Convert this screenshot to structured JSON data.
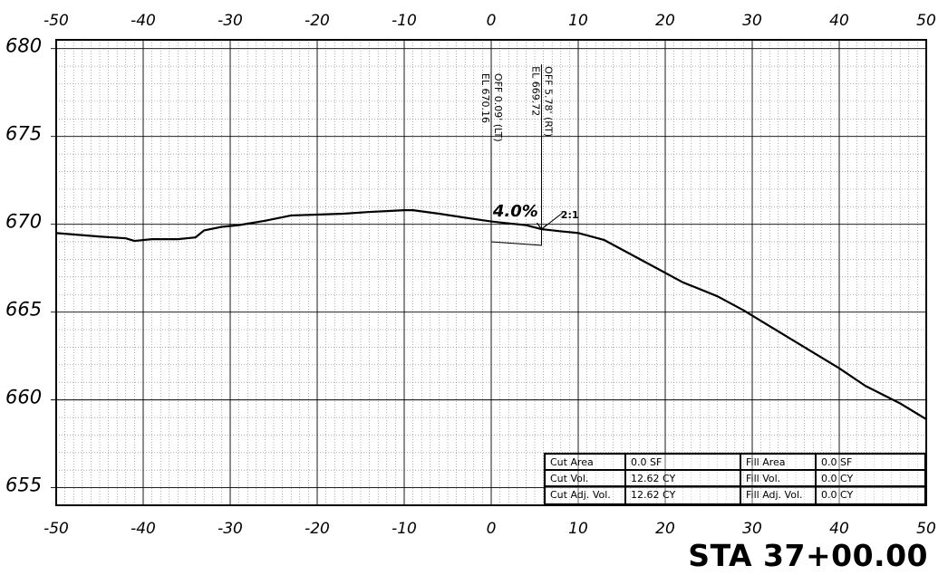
{
  "chart_data": {
    "type": "line",
    "x_ticks": [
      -50,
      -40,
      -30,
      -20,
      -10,
      0,
      10,
      20,
      30,
      40,
      50
    ],
    "y_ticks": [
      680,
      675,
      670,
      665,
      660,
      655
    ],
    "xlim": [
      -50,
      50
    ],
    "ylim": [
      654,
      680.5
    ],
    "grid": true,
    "minor_grid": "dotted",
    "series": [
      {
        "x": [
          -50,
          -45,
          -42,
          -41,
          -39,
          -36,
          -34,
          -33,
          -31,
          -29,
          -26,
          -23,
          -20,
          -17,
          -14,
          -12,
          -10,
          -9,
          -6,
          -2,
          0,
          2,
          4,
          5.78,
          8,
          10,
          13,
          16,
          19,
          22,
          26,
          29,
          32,
          36,
          40,
          43,
          47,
          50
        ],
        "y": [
          669.5,
          669.3,
          669.2,
          669.05,
          669.15,
          669.15,
          669.25,
          669.65,
          669.85,
          669.95,
          670.2,
          670.5,
          670.55,
          670.6,
          670.7,
          670.75,
          670.8,
          670.8,
          670.6,
          670.3,
          670.16,
          670.05,
          669.95,
          669.72,
          669.6,
          669.5,
          669.1,
          668.3,
          667.5,
          666.7,
          665.9,
          665.1,
          664.2,
          663.0,
          661.8,
          660.8,
          659.8,
          658.9
        ]
      }
    ],
    "template": {
      "x": [
        0,
        0,
        5.78,
        5.78
      ],
      "y": [
        670.16,
        669.0,
        668.8,
        669.72
      ]
    },
    "offset_markers": [
      {
        "x": 0,
        "top_y": 678.7,
        "line1": "OFF 0.09' (LT)",
        "line2": "EL 670.16"
      },
      {
        "x": 5.78,
        "top_y": 679.1,
        "line1": "OFF 5.78' (RT)",
        "line2": "EL 669.72"
      }
    ],
    "annotations": {
      "slope_label": "4.0%",
      "side_slope_label": "2:1"
    },
    "quantities_table": [
      [
        "Cut Area",
        "0.0 SF",
        "Fill Area",
        "0.0 SF"
      ],
      [
        "Cut Vol.",
        "12.62 CY",
        "Fill Vol.",
        "0.0 CY"
      ],
      [
        "Cut Adj. Vol.",
        "12.62 CY",
        "Fill Adj. Vol.",
        "0.0 CY"
      ]
    ]
  },
  "station_label": "STA 37+00.00"
}
